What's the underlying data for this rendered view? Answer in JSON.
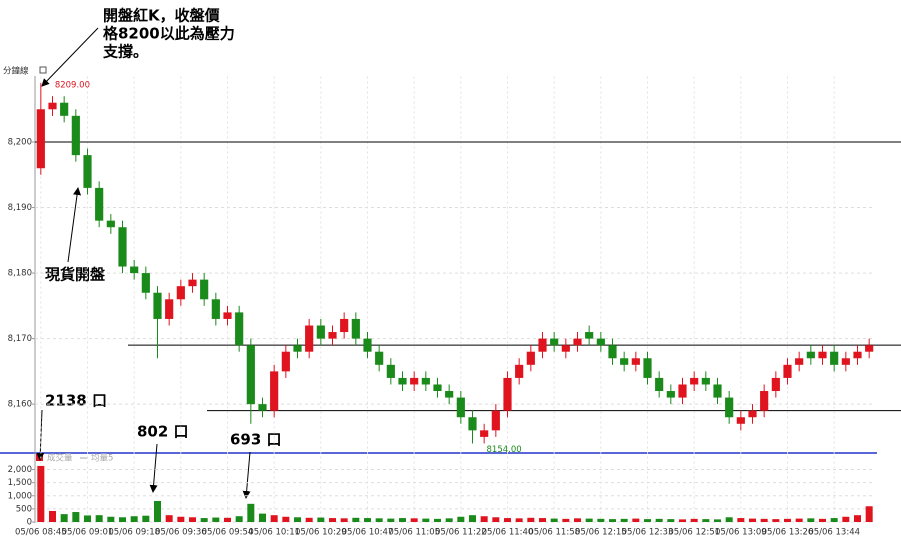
{
  "chart_data": {
    "type": "candlestick",
    "period_label": "分鐘線",
    "up_color": "#e0141e",
    "down_color": "#1a8a1a",
    "ylim": [
      8153,
      8210
    ],
    "yticks": [
      {
        "value": 8160,
        "label": "8,160"
      },
      {
        "value": 8170,
        "label": "8,170"
      },
      {
        "value": 8180,
        "label": "8,180"
      },
      {
        "value": 8190,
        "label": "8,190"
      },
      {
        "value": 8200,
        "label": "8,200"
      }
    ],
    "grid": true,
    "hlines": [
      8200,
      8169,
      8159
    ],
    "categories": [
      "05/06 08:45",
      null,
      null,
      null,
      "05/06 09:01",
      null,
      null,
      null,
      "05/06 09:18",
      null,
      null,
      null,
      "05/06 09:36",
      null,
      null,
      null,
      "05/06 09:54",
      null,
      null,
      null,
      "05/06 10:11",
      null,
      null,
      null,
      "05/06 10:29",
      null,
      null,
      null,
      "05/06 10:47",
      null,
      null,
      null,
      "05/06 11:05",
      null,
      null,
      null,
      "05/06 11:22",
      null,
      null,
      null,
      "05/06 11:40",
      null,
      null,
      null,
      "05/06 11:58",
      null,
      null,
      null,
      "05/06 12:15",
      null,
      null,
      null,
      "05/06 12:33",
      null,
      null,
      null,
      "05/06 12:51",
      null,
      null,
      null,
      "05/06 13:09",
      null,
      null,
      null,
      "05/06 13:26",
      null,
      null,
      null,
      "05/06 13:44",
      null,
      null,
      null
    ],
    "open": [
      8196,
      8205,
      8206,
      8204,
      8198,
      8193,
      8188,
      8187,
      8181,
      8180,
      8177,
      8173,
      8176,
      8178,
      8179,
      8176,
      8173,
      8174,
      8169,
      8160,
      8159,
      8165,
      8169,
      8168,
      8172,
      8170,
      8171,
      8173,
      8170,
      8168,
      8166,
      8164,
      8163,
      8164,
      8163,
      8162,
      8161,
      8158,
      8155,
      8156,
      8159,
      8164,
      8166,
      8168,
      8170,
      8168,
      8169,
      8171,
      8170,
      8169,
      8167,
      8166,
      8167,
      8164,
      8162,
      8161,
      8163,
      8164,
      8163,
      8161,
      8157,
      8158,
      8159,
      8162,
      8164,
      8166,
      8168,
      8167,
      8168,
      8166,
      8167,
      8168
    ],
    "high": [
      8209,
      8207,
      8207,
      8205,
      8199,
      8194,
      8189,
      8188,
      8182,
      8181,
      8178,
      8177,
      8179,
      8180,
      8180,
      8177,
      8175,
      8175,
      8170,
      8161,
      8166,
      8169,
      8170,
      8173,
      8173,
      8172,
      8174,
      8174,
      8171,
      8169,
      8167,
      8165,
      8165,
      8165,
      8164,
      8163,
      8162,
      8159,
      8157,
      8160,
      8165,
      8167,
      8169,
      8171,
      8171,
      8170,
      8171,
      8172,
      8171,
      8170,
      8168,
      8168,
      8168,
      8165,
      8163,
      8164,
      8165,
      8165,
      8164,
      8162,
      8159,
      8160,
      8163,
      8165,
      8167,
      8168,
      8169,
      8169,
      8169,
      8168,
      8169,
      8170
    ],
    "low": [
      8195,
      8204,
      8203,
      8197,
      8192,
      8187,
      8186,
      8180,
      8179,
      8176,
      8167,
      8172,
      8175,
      8177,
      8175,
      8172,
      8172,
      8168,
      8157,
      8158,
      8158,
      8164,
      8167,
      8167,
      8169,
      8169,
      8170,
      8169,
      8167,
      8165,
      8163,
      8162,
      8162,
      8162,
      8161,
      8160,
      8157,
      8154,
      8154,
      8155,
      8158,
      8163,
      8165,
      8167,
      8168,
      8167,
      8168,
      8169,
      8168,
      8166,
      8165,
      8165,
      8163,
      8161,
      8160,
      8160,
      8162,
      8162,
      8160,
      8157,
      8156,
      8157,
      8158,
      8161,
      8163,
      8165,
      8166,
      8166,
      8165,
      8165,
      8166,
      8167
    ],
    "close": [
      8205,
      8206,
      8204,
      8198,
      8193,
      8188,
      8187,
      8181,
      8180,
      8177,
      8173,
      8176,
      8178,
      8179,
      8176,
      8173,
      8174,
      8169,
      8160,
      8159,
      8165,
      8168,
      8168,
      8172,
      8170,
      8171,
      8173,
      8170,
      8168,
      8166,
      8164,
      8163,
      8164,
      8163,
      8162,
      8161,
      8158,
      8156,
      8156,
      8159,
      8164,
      8166,
      8168,
      8170,
      8169,
      8169,
      8170,
      8170,
      8169,
      8167,
      8166,
      8167,
      8164,
      8162,
      8161,
      8163,
      8164,
      8163,
      8161,
      8158,
      8158,
      8159,
      8162,
      8164,
      8166,
      8167,
      8167,
      8168,
      8166,
      8167,
      8168,
      8169
    ],
    "price_labels": [
      {
        "index": 0,
        "text": "8209.00"
      },
      {
        "index": 37,
        "text": "8154.00"
      }
    ],
    "volume": {
      "name": "成交量",
      "average_name": "均量5",
      "ylim": [
        0,
        2250
      ],
      "yticks": [
        0,
        500,
        {
          "value": 1000,
          "label": "1,000"
        },
        {
          "value": 1500,
          "label": "1,500"
        },
        {
          "value": 2000,
          "label": "2,000"
        }
      ],
      "values": [
        2138,
        420,
        300,
        380,
        250,
        260,
        200,
        180,
        220,
        240,
        802,
        260,
        200,
        180,
        150,
        170,
        160,
        220,
        693,
        320,
        260,
        200,
        180,
        160,
        170,
        150,
        140,
        160,
        150,
        140,
        130,
        150,
        140,
        130,
        120,
        140,
        200,
        260,
        220,
        180,
        150,
        140,
        160,
        150,
        130,
        120,
        140,
        130,
        120,
        110,
        120,
        130,
        110,
        120,
        110,
        100,
        120,
        110,
        100,
        180,
        150,
        130,
        120,
        110,
        120,
        130,
        140,
        120,
        150,
        200,
        260,
        600
      ]
    },
    "annotations": {
      "open_note": [
        "開盤紅K，收盤價",
        "格8200以此為壓力",
        "支撐。"
      ],
      "spot_open": "現貨開盤",
      "vol_notes": [
        "2138 口",
        "802 口",
        "693 口"
      ]
    }
  }
}
